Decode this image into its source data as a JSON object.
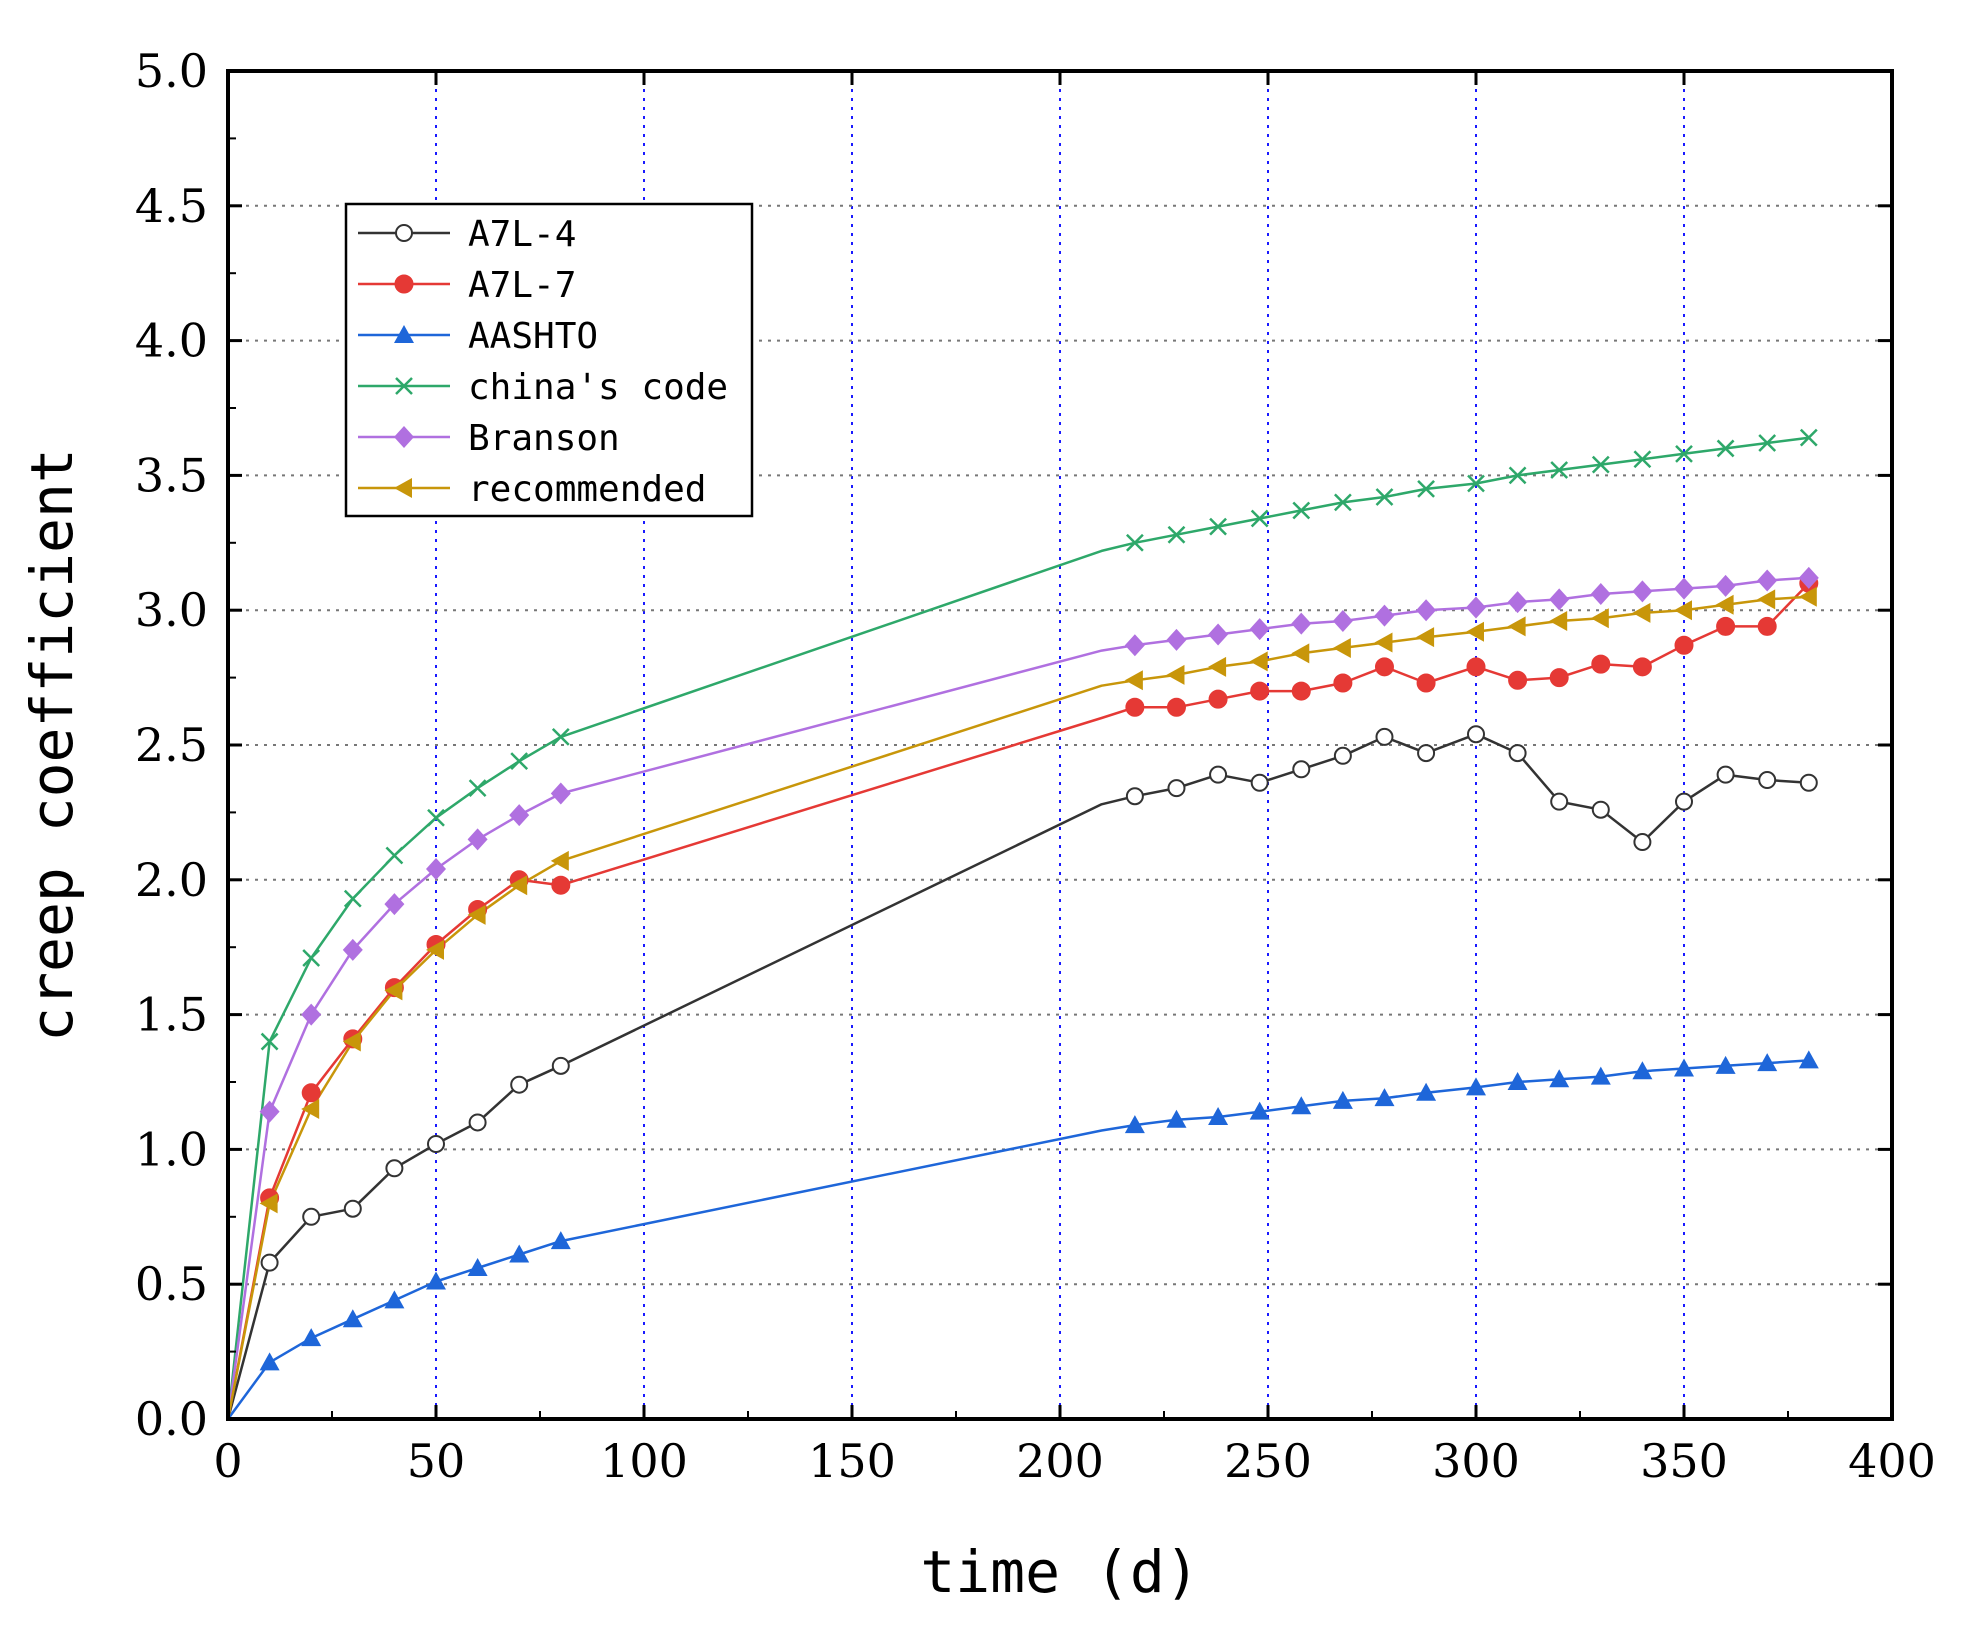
{
  "chart_data": {
    "type": "line",
    "title": "",
    "xlabel": "time (d)",
    "ylabel": "creep coefficient",
    "xlim": [
      0,
      400
    ],
    "ylim": [
      0,
      5.0
    ],
    "xticks": [
      0,
      50,
      100,
      150,
      200,
      250,
      300,
      350,
      400
    ],
    "yticks": [
      0.0,
      0.5,
      1.0,
      1.5,
      2.0,
      2.5,
      3.0,
      3.5,
      4.0,
      4.5,
      5.0
    ],
    "xtick_labels": [
      "0",
      "50",
      "100",
      "150",
      "200",
      "250",
      "300",
      "350",
      "400"
    ],
    "ytick_labels": [
      "0.0",
      "0.5",
      "1.0",
      "1.5",
      "2.0",
      "2.5",
      "3.0",
      "3.5",
      "4.0",
      "4.5",
      "5.0"
    ],
    "grid": {
      "x": "dotted blue",
      "y": "dotted gray"
    },
    "legend_position": "top-left",
    "series": [
      {
        "name": "A7L-4",
        "color": "#333333",
        "marker": "circle-open",
        "x": [
          0,
          10,
          20,
          30,
          40,
          50,
          60,
          70,
          80,
          210,
          218,
          228,
          238,
          248,
          258,
          268,
          278,
          288,
          300,
          310,
          320,
          330,
          340,
          350,
          360,
          370,
          380
        ],
        "y": [
          0.0,
          0.58,
          0.75,
          0.78,
          0.93,
          1.02,
          1.1,
          1.24,
          1.31,
          2.28,
          2.31,
          2.34,
          2.39,
          2.36,
          2.41,
          2.46,
          2.53,
          2.47,
          2.54,
          2.47,
          2.29,
          2.26,
          2.14,
          2.29,
          2.39,
          2.37,
          2.36
        ]
      },
      {
        "name": "A7L-7",
        "color": "#e53935",
        "marker": "circle-filled",
        "x": [
          0,
          10,
          20,
          30,
          40,
          50,
          60,
          70,
          80,
          210,
          218,
          228,
          238,
          248,
          258,
          268,
          278,
          288,
          300,
          310,
          320,
          330,
          340,
          350,
          360,
          370,
          380
        ],
        "y": [
          0.0,
          0.82,
          1.21,
          1.41,
          1.6,
          1.76,
          1.89,
          2.0,
          1.98,
          2.6,
          2.64,
          2.64,
          2.67,
          2.7,
          2.7,
          2.73,
          2.79,
          2.73,
          2.79,
          2.74,
          2.75,
          2.8,
          2.79,
          2.87,
          2.94,
          2.94,
          3.1
        ]
      },
      {
        "name": "AASHTO",
        "color": "#1e66d9",
        "marker": "triangle-up",
        "x": [
          0,
          10,
          20,
          30,
          40,
          50,
          60,
          70,
          80,
          210,
          218,
          228,
          238,
          248,
          258,
          268,
          278,
          288,
          300,
          310,
          320,
          330,
          340,
          350,
          360,
          370,
          380
        ],
        "y": [
          0.0,
          0.21,
          0.3,
          0.37,
          0.44,
          0.51,
          0.56,
          0.61,
          0.66,
          1.07,
          1.09,
          1.11,
          1.12,
          1.14,
          1.16,
          1.18,
          1.19,
          1.21,
          1.23,
          1.25,
          1.26,
          1.27,
          1.29,
          1.3,
          1.31,
          1.32,
          1.33
        ]
      },
      {
        "name": "china's code",
        "color": "#2ea86a",
        "marker": "x",
        "x": [
          0,
          10,
          20,
          30,
          40,
          50,
          60,
          70,
          80,
          210,
          218,
          228,
          238,
          248,
          258,
          268,
          278,
          288,
          300,
          310,
          320,
          330,
          340,
          350,
          360,
          370,
          380
        ],
        "y": [
          0.0,
          1.4,
          1.71,
          1.93,
          2.09,
          2.23,
          2.34,
          2.44,
          2.53,
          3.22,
          3.25,
          3.28,
          3.31,
          3.34,
          3.37,
          3.4,
          3.42,
          3.45,
          3.47,
          3.5,
          3.52,
          3.54,
          3.56,
          3.58,
          3.6,
          3.62,
          3.64
        ]
      },
      {
        "name": "Branson",
        "color": "#b070e0",
        "marker": "diamond",
        "x": [
          0,
          10,
          20,
          30,
          40,
          50,
          60,
          70,
          80,
          210,
          218,
          228,
          238,
          248,
          258,
          268,
          278,
          288,
          300,
          310,
          320,
          330,
          340,
          350,
          360,
          370,
          380
        ],
        "y": [
          0.0,
          1.14,
          1.5,
          1.74,
          1.91,
          2.04,
          2.15,
          2.24,
          2.32,
          2.85,
          2.87,
          2.89,
          2.91,
          2.93,
          2.95,
          2.96,
          2.98,
          3.0,
          3.01,
          3.03,
          3.04,
          3.06,
          3.07,
          3.08,
          3.09,
          3.11,
          3.12
        ]
      },
      {
        "name": "recommended",
        "color": "#c8960a",
        "marker": "triangle-left",
        "x": [
          0,
          10,
          20,
          30,
          40,
          50,
          60,
          70,
          80,
          210,
          218,
          228,
          238,
          248,
          258,
          268,
          278,
          288,
          300,
          310,
          320,
          330,
          340,
          350,
          360,
          370,
          380
        ],
        "y": [
          0.0,
          0.8,
          1.15,
          1.4,
          1.59,
          1.74,
          1.87,
          1.98,
          2.07,
          2.72,
          2.74,
          2.76,
          2.79,
          2.81,
          2.84,
          2.86,
          2.88,
          2.9,
          2.92,
          2.94,
          2.96,
          2.97,
          2.99,
          3.0,
          3.02,
          3.04,
          3.05
        ]
      }
    ]
  }
}
